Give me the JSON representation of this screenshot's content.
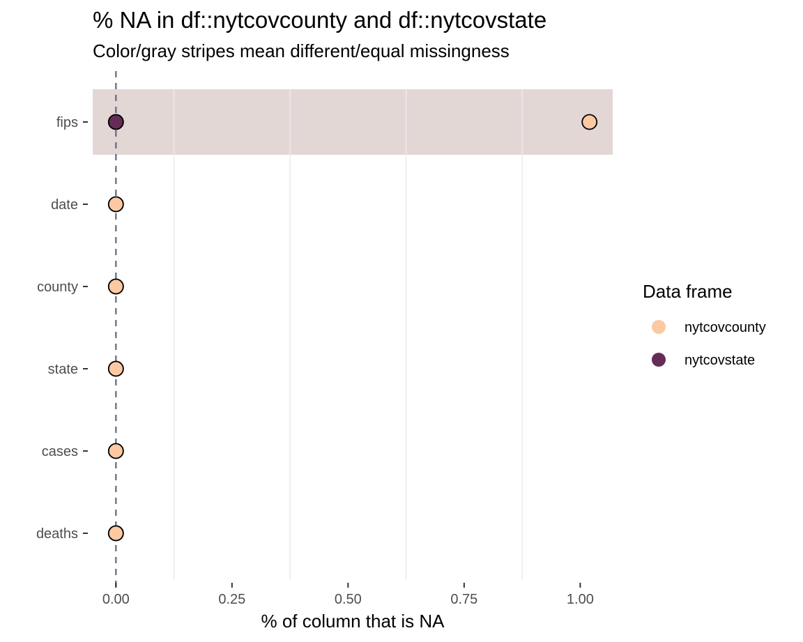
{
  "chart_data": {
    "type": "scatter",
    "title": "% NA in df::nytcovcounty and df::nytcovstate",
    "subtitle": "Color/gray stripes mean different/equal missingness",
    "xlabel": "% of column that is NA",
    "ylabel": "",
    "xlim": [
      -0.05,
      1.07
    ],
    "x_ticks": [
      0.0,
      0.25,
      0.5,
      0.75,
      1.0
    ],
    "x_tick_labels": [
      "0.00",
      "0.25",
      "0.50",
      "0.75",
      "1.00"
    ],
    "categories": [
      "fips",
      "date",
      "county",
      "state",
      "cases",
      "deaths"
    ],
    "series": [
      {
        "name": "nytcovcounty",
        "color": "#FCC9A3",
        "values": [
          1.02,
          0.0,
          0.0,
          0.0,
          0.0,
          0.0
        ]
      },
      {
        "name": "nytcovstate",
        "color": "#652C58",
        "values": [
          0.0,
          0.0,
          0.0,
          0.0,
          0.0,
          0.0
        ]
      }
    ],
    "highlighted_categories": [
      "fips"
    ],
    "stripe_color": "#E3D7D5",
    "reference_line_x": 0.0,
    "reference_line_color": "#616B80",
    "legend": {
      "title": "Data frame",
      "placement": "right"
    },
    "grid": {
      "major_x": false,
      "minor_x": true,
      "major_y": false
    }
  }
}
